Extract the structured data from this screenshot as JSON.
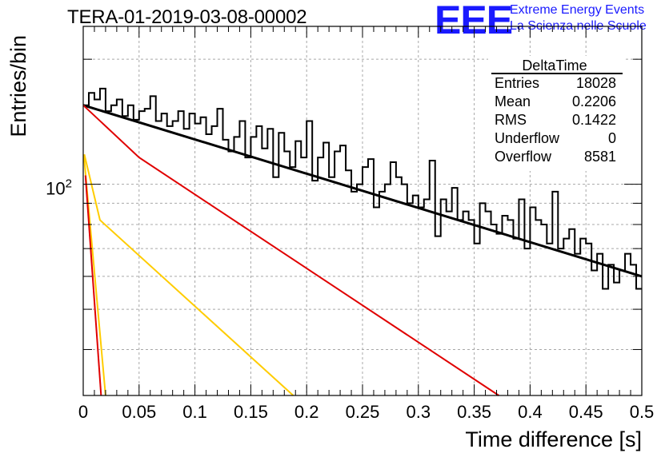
{
  "title": "TERA-01-2019-03-08-00002",
  "logo": {
    "mark": "EEE",
    "line1": "Extreme Energy Events",
    "line2": "La Scienza nelle Scuole",
    "color": "#1a1aff"
  },
  "stats": {
    "name": "DeltaTime",
    "rows": [
      {
        "label": "Entries",
        "value": "18028"
      },
      {
        "label": "Mean",
        "value": "0.2206"
      },
      {
        "label": "RMS",
        "value": "0.1422"
      },
      {
        "label": "Underflow",
        "value": "0"
      },
      {
        "label": "Overflow",
        "value": "8581"
      }
    ]
  },
  "chart_data": {
    "type": "line",
    "xlabel": "Time difference [s]",
    "ylabel": "Entries/bin",
    "xlim": [
      0,
      0.5
    ],
    "ylim": [
      31,
      240
    ],
    "yscale": "log",
    "grid": true,
    "x_ticks": [
      "0",
      "0.05",
      "0.1",
      "0.15",
      "0.2",
      "0.25",
      "0.3",
      "0.35",
      "0.4",
      "0.45",
      "0.5"
    ],
    "y_tick_label": {
      "base": "10",
      "exp": "2",
      "value": 100
    },
    "histogram": {
      "bin_width": 0.005,
      "color": "#000000",
      "counts": [
        155,
        166,
        160,
        170,
        150,
        155,
        160,
        146,
        155,
        143,
        150,
        152,
        163,
        142,
        148,
        138,
        142,
        150,
        136,
        148,
        140,
        145,
        132,
        138,
        152,
        128,
        120,
        130,
        142,
        116,
        130,
        138,
        122,
        136,
        104,
        133,
        120,
        110,
        127,
        116,
        142,
        102,
        116,
        126,
        104,
        120,
        124,
        108,
        96,
        100,
        110,
        115,
        88,
        96,
        100,
        113,
        104,
        100,
        90,
        94,
        88,
        92,
        114,
        75,
        92,
        86,
        98,
        82,
        86,
        82,
        72,
        90,
        86,
        80,
        76,
        84,
        82,
        74,
        92,
        70,
        88,
        82,
        80,
        72,
        96,
        70,
        74,
        78,
        68,
        74,
        72,
        62,
        68,
        56,
        64,
        58,
        62,
        68,
        64,
        56,
        60
      ]
    },
    "series": [
      {
        "color": "#000000",
        "x": [
          0,
          0.5
        ],
        "y": [
          155,
          60
        ]
      },
      {
        "color": "#e00000",
        "x": [
          0,
          0.05,
          0.372
        ],
        "y": [
          155,
          116,
          31
        ]
      },
      {
        "color": "#ffcc00",
        "x": [
          0.001,
          0.015,
          0.188
        ],
        "y": [
          118,
          82,
          31
        ]
      },
      {
        "color": "#ffcc00",
        "x": [
          0.0005,
          0.02
        ],
        "y": [
          118,
          31
        ]
      },
      {
        "color": "#e00000",
        "x": [
          0.002,
          0.016
        ],
        "y": [
          105,
          31
        ]
      }
    ]
  }
}
